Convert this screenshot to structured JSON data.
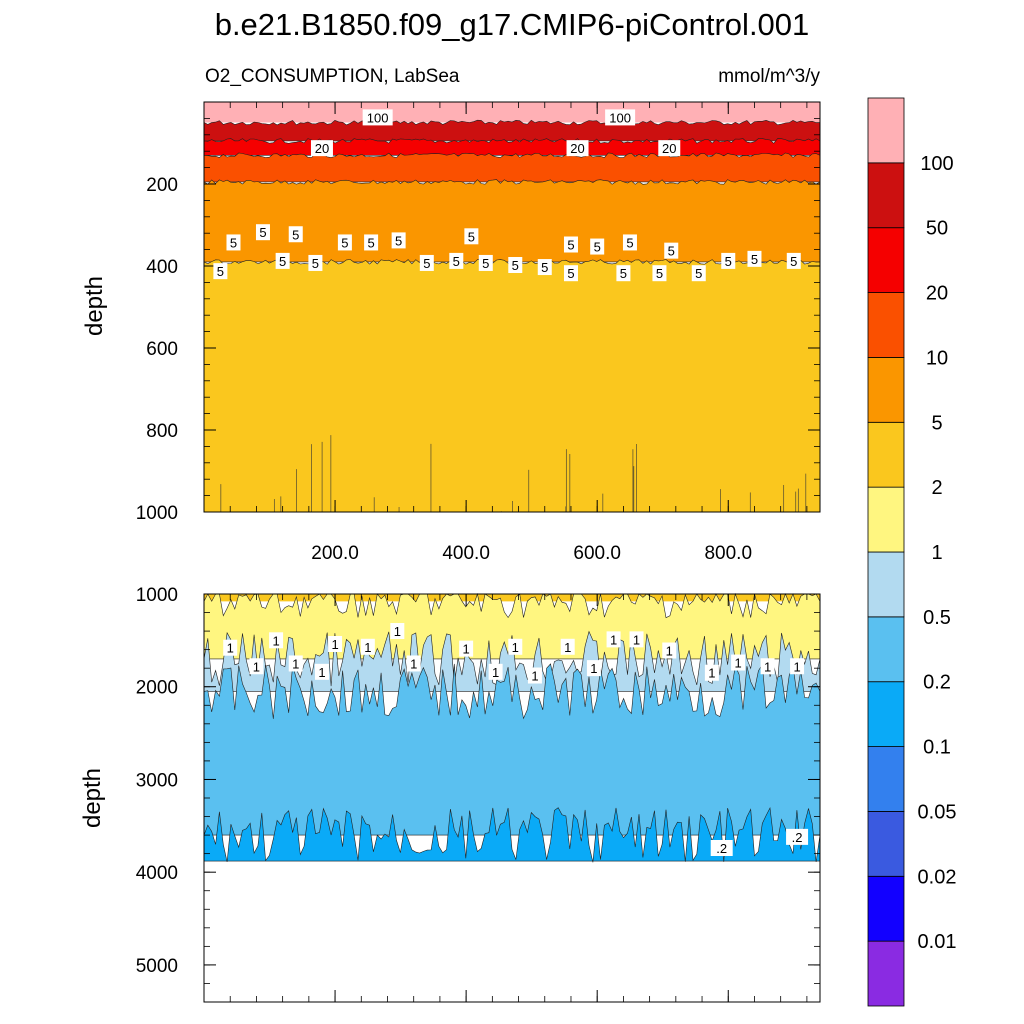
{
  "chart_data": {
    "type": "contour",
    "title": "b.e21.B1850.f09_g17.CMIP6-piControl.001",
    "subtitle_left": "O2_CONSUMPTION, LabSea",
    "subtitle_right": "mmol/m^3/y",
    "x_range": [
      0,
      940
    ],
    "x_ticks": [
      200,
      400,
      600,
      800
    ],
    "x_tick_labels": [
      "200.0",
      "400.0",
      "600.0",
      "800.0"
    ],
    "colorbar": {
      "levels": [
        0.01,
        0.02,
        0.05,
        0.1,
        0.2,
        0.5,
        1,
        2,
        5,
        10,
        20,
        50,
        100
      ],
      "level_labels": [
        "0.01",
        "0.02",
        "0.05",
        "0.1",
        "0.2",
        "0.5",
        "1",
        "2",
        "5",
        "10",
        "20",
        "50",
        "100"
      ],
      "colors": [
        "#8a2be2",
        "#1200ff",
        "#3a5ae0",
        "#3380ee",
        "#0aaaf7",
        "#5ac0f0",
        "#b2daf0",
        "#fff680",
        "#fac71e",
        "#fa9600",
        "#fa5000",
        "#f50000",
        "#cc1010",
        "#ffb0b5"
      ]
    },
    "panels": [
      {
        "name": "upper",
        "ylabel": "depth",
        "ylim": [
          0,
          1000
        ],
        "y_ticks": [
          200,
          400,
          600,
          800,
          1000
        ],
        "y_tick_labels": [
          "200",
          "400",
          "600",
          "800",
          "1000"
        ],
        "bands": [
          {
            "from": 0,
            "to": 50,
            "color": "#ffb0b5",
            "range": ">100"
          },
          {
            "from": 50,
            "to": 95,
            "color": "#cc1010",
            "range": "50-100"
          },
          {
            "from": 95,
            "to": 130,
            "color": "#f50000",
            "range": "20-50"
          },
          {
            "from": 130,
            "to": 195,
            "color": "#fa5000",
            "range": "10-20"
          },
          {
            "from": 195,
            "to": 390,
            "color": "#fa9600",
            "range": "5-10"
          },
          {
            "from": 390,
            "to": 1000,
            "color": "#fac71e",
            "range": "2-5"
          }
        ],
        "contour_labels": [
          {
            "x": 265,
            "y": 40,
            "text": "100"
          },
          {
            "x": 635,
            "y": 40,
            "text": "100"
          },
          {
            "x": 180,
            "y": 115,
            "text": "20"
          },
          {
            "x": 570,
            "y": 115,
            "text": "20"
          },
          {
            "x": 710,
            "y": 115,
            "text": "20"
          },
          {
            "x": 90,
            "y": 320,
            "text": "5"
          },
          {
            "x": 140,
            "y": 325,
            "text": "5"
          },
          {
            "x": 45,
            "y": 345,
            "text": "5"
          },
          {
            "x": 215,
            "y": 345,
            "text": "5"
          },
          {
            "x": 255,
            "y": 345,
            "text": "5"
          },
          {
            "x": 297,
            "y": 340,
            "text": "5"
          },
          {
            "x": 408,
            "y": 330,
            "text": "5"
          },
          {
            "x": 560,
            "y": 350,
            "text": "5"
          },
          {
            "x": 600,
            "y": 355,
            "text": "5"
          },
          {
            "x": 650,
            "y": 345,
            "text": "5"
          },
          {
            "x": 713,
            "y": 365,
            "text": "5"
          },
          {
            "x": 120,
            "y": 390,
            "text": "5"
          },
          {
            "x": 170,
            "y": 395,
            "text": "5"
          },
          {
            "x": 340,
            "y": 395,
            "text": "5"
          },
          {
            "x": 385,
            "y": 390,
            "text": "5"
          },
          {
            "x": 430,
            "y": 395,
            "text": "5"
          },
          {
            "x": 475,
            "y": 400,
            "text": "5"
          },
          {
            "x": 520,
            "y": 405,
            "text": "5"
          },
          {
            "x": 560,
            "y": 420,
            "text": "5"
          },
          {
            "x": 640,
            "y": 420,
            "text": "5"
          },
          {
            "x": 695,
            "y": 420,
            "text": "5"
          },
          {
            "x": 755,
            "y": 420,
            "text": "5"
          },
          {
            "x": 800,
            "y": 390,
            "text": "5"
          },
          {
            "x": 840,
            "y": 385,
            "text": "5"
          },
          {
            "x": 900,
            "y": 390,
            "text": "5"
          },
          {
            "x": 25,
            "y": 415,
            "text": "5"
          }
        ]
      },
      {
        "name": "lower",
        "ylabel": "depth",
        "ylim": [
          1000,
          5400
        ],
        "y_ticks": [
          1000,
          2000,
          3000,
          4000,
          5000
        ],
        "y_tick_labels": [
          "1000",
          "2000",
          "3000",
          "4000",
          "5000"
        ],
        "data_bottom": 3880,
        "bands": [
          {
            "from": 1000,
            "to": 1080,
            "color": "#fac71e",
            "range": "2-5"
          },
          {
            "from": 1080,
            "to": 1700,
            "color": "#fff680",
            "range": "1-2"
          },
          {
            "from": 1700,
            "to": 2050,
            "color": "#b2daf0",
            "range": "0.5-1"
          },
          {
            "from": 2050,
            "to": 3600,
            "color": "#5ac0f0",
            "range": "0.2-0.5"
          },
          {
            "from": 3600,
            "to": 3880,
            "color": "#0aaaf7",
            "range": "0.1-0.2"
          }
        ],
        "contour_labels": [
          {
            "x": 40,
            "y": 1590,
            "text": "1"
          },
          {
            "x": 110,
            "y": 1510,
            "text": "1"
          },
          {
            "x": 200,
            "y": 1550,
            "text": "1"
          },
          {
            "x": 250,
            "y": 1580,
            "text": "1"
          },
          {
            "x": 295,
            "y": 1410,
            "text": "1"
          },
          {
            "x": 400,
            "y": 1600,
            "text": "1"
          },
          {
            "x": 475,
            "y": 1580,
            "text": "1"
          },
          {
            "x": 555,
            "y": 1580,
            "text": "1"
          },
          {
            "x": 625,
            "y": 1500,
            "text": "1"
          },
          {
            "x": 660,
            "y": 1500,
            "text": "1"
          },
          {
            "x": 710,
            "y": 1620,
            "text": "1"
          },
          {
            "x": 80,
            "y": 1790,
            "text": "1"
          },
          {
            "x": 140,
            "y": 1760,
            "text": "1"
          },
          {
            "x": 180,
            "y": 1850,
            "text": "1"
          },
          {
            "x": 320,
            "y": 1760,
            "text": "1"
          },
          {
            "x": 445,
            "y": 1850,
            "text": "1"
          },
          {
            "x": 505,
            "y": 1890,
            "text": "1"
          },
          {
            "x": 595,
            "y": 1810,
            "text": "1"
          },
          {
            "x": 775,
            "y": 1860,
            "text": "1"
          },
          {
            "x": 815,
            "y": 1750,
            "text": "1"
          },
          {
            "x": 860,
            "y": 1790,
            "text": "1"
          },
          {
            "x": 905,
            "y": 1790,
            "text": "1"
          },
          {
            "x": 790,
            "y": 3750,
            "text": ".2"
          },
          {
            "x": 905,
            "y": 3630,
            "text": ".2"
          }
        ]
      }
    ]
  }
}
